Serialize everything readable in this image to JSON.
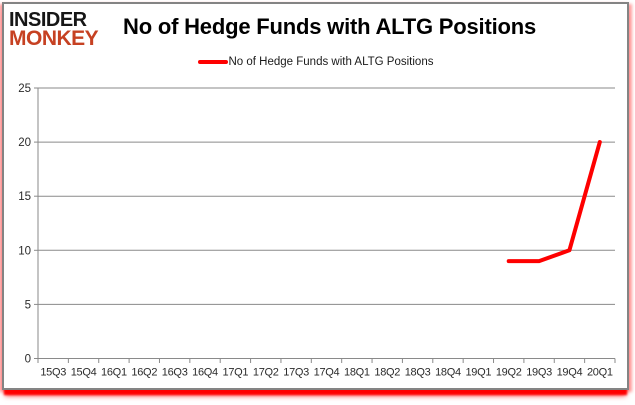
{
  "header": {
    "logo_line1": "INSIDER",
    "logo_line2": "MONKEY",
    "title": "No of Hedge Funds with ALTG Positions"
  },
  "legend": {
    "label": "No of Hedge Funds with ALTG Positions"
  },
  "colors": {
    "series_line": "#fe0000",
    "logo_primary": "#161616",
    "logo_accent": "#c64122",
    "gridline": "#8a8a8a",
    "axis_line": "#8a8a8a",
    "axis_text": "#2b2b2b",
    "card_border": "#848484",
    "glow": "#ff0000"
  },
  "chart_data": {
    "type": "line",
    "title": "No of Hedge Funds with ALTG Positions",
    "categories": [
      "15Q3",
      "15Q4",
      "16Q1",
      "16Q2",
      "16Q3",
      "16Q4",
      "17Q1",
      "17Q2",
      "17Q3",
      "17Q4",
      "18Q1",
      "18Q2",
      "18Q3",
      "18Q4",
      "19Q1",
      "19Q2",
      "19Q3",
      "19Q4",
      "20Q1"
    ],
    "series": [
      {
        "name": "No of Hedge Funds with ALTG Positions",
        "values": [
          null,
          null,
          null,
          null,
          null,
          null,
          null,
          null,
          null,
          null,
          null,
          null,
          null,
          null,
          null,
          9,
          9,
          10,
          20
        ]
      }
    ],
    "xlabel": "",
    "ylabel": "",
    "ylim": [
      0,
      25
    ],
    "yticks": [
      0,
      5,
      10,
      15,
      20,
      25
    ],
    "grid": true,
    "legend_position": "top-center"
  }
}
